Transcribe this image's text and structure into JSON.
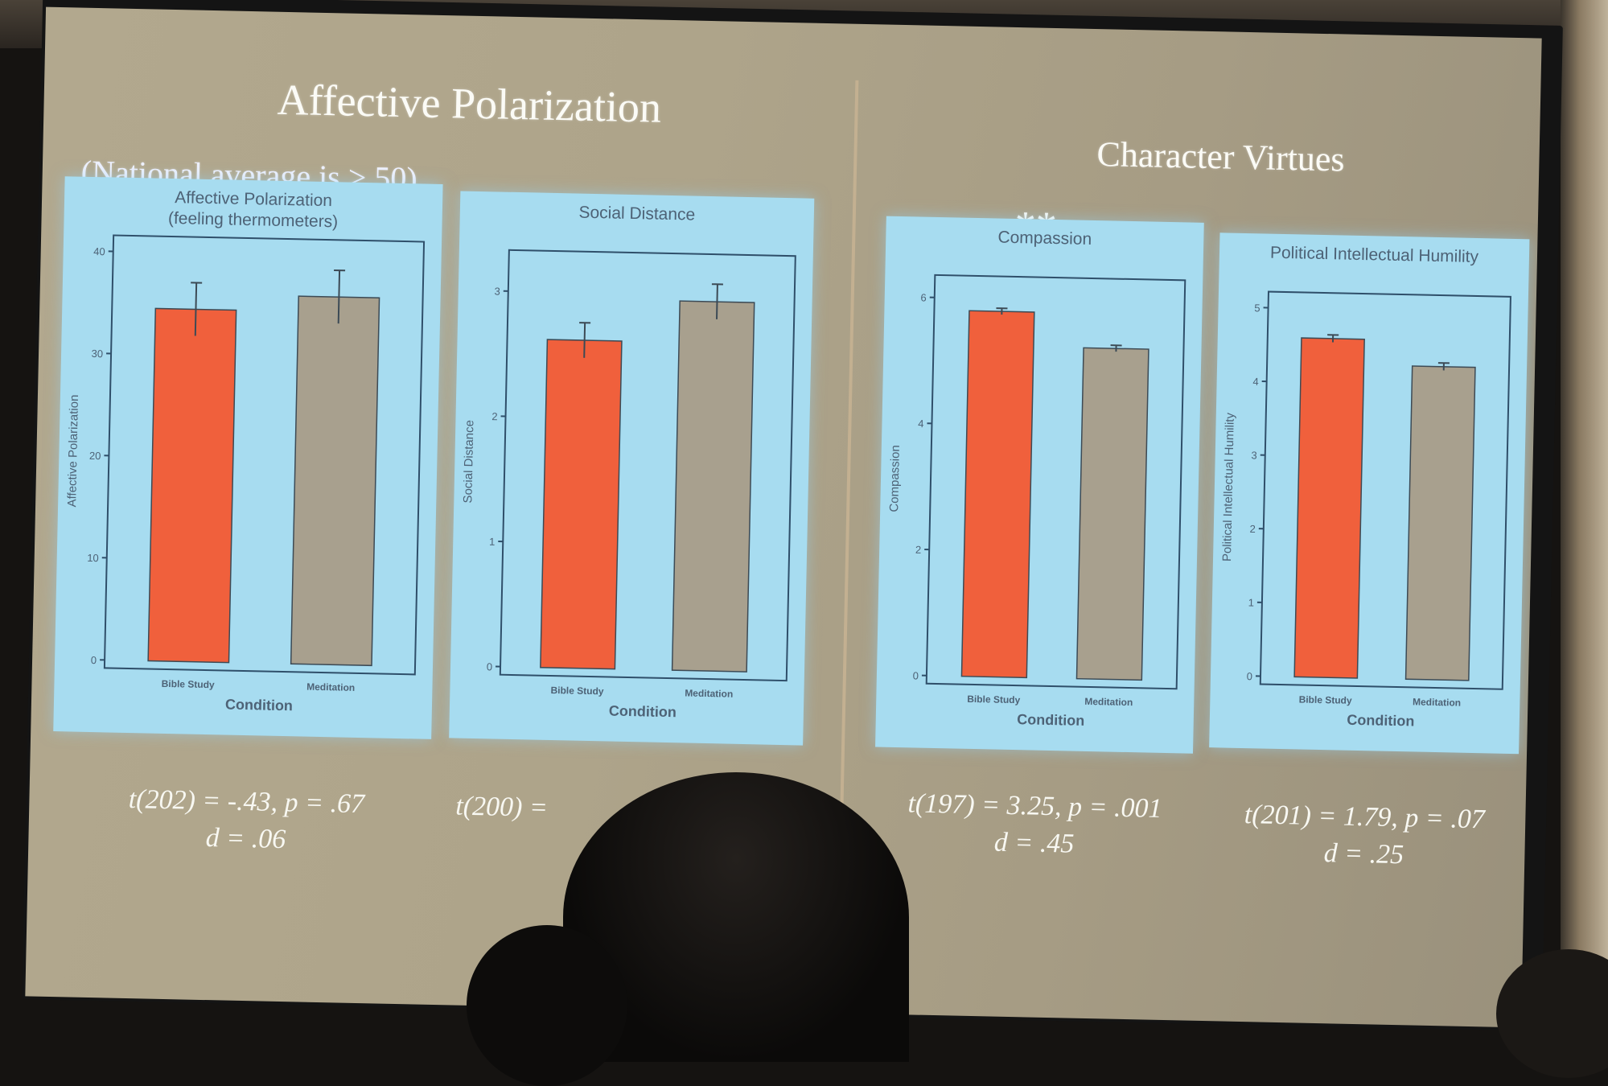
{
  "slide": {
    "left_title": "Affective Polarization",
    "left_subtitle": "(National average is > 50)",
    "right_title": "Character Virtues",
    "significance": "**"
  },
  "colors": {
    "panel_bg": "#a7dcf0",
    "meditation_bar": "#f0603c",
    "control_bar": "#a8a08e",
    "axis": "#2f4f6a"
  },
  "chart_data": [
    {
      "type": "bar",
      "title": "Affective Polarization\n(feeling thermometers)",
      "categories": [
        "Bible Study",
        "Meditation"
      ],
      "values": [
        34.5,
        36.0
      ],
      "errors": [
        2.6,
        2.6
      ],
      "ylabel": "Affective Polarization",
      "xlabel": "Condition",
      "yticks": [
        0,
        10,
        20,
        30,
        40
      ],
      "ylim": [
        0,
        40
      ],
      "stat_line1": "t(202) = -.43, p = .67",
      "stat_line2": "d = .06"
    },
    {
      "type": "bar",
      "title": "Social Distance",
      "categories": [
        "Bible Study",
        "Meditation"
      ],
      "values": [
        2.62,
        2.95
      ],
      "errors": [
        0.14,
        0.14
      ],
      "ylabel": "Social Distance",
      "xlabel": "Condition",
      "yticks": [
        0,
        1,
        2,
        3
      ],
      "ylim": [
        0,
        3.2
      ],
      "stat_line1": "t(200) = ",
      "stat_line2": ""
    },
    {
      "type": "bar",
      "title": "Compassion",
      "categories": [
        "Bible Study",
        "Meditation"
      ],
      "values": [
        5.8,
        5.25
      ],
      "errors": [
        0.05,
        0.05
      ],
      "ylabel": "Compassion",
      "xlabel": "Condition",
      "yticks": [
        0,
        2,
        4,
        6
      ],
      "ylim": [
        0,
        6.1
      ],
      "stat_line1": "t(197) = 3.25, p = .001",
      "stat_line2": "d = .45"
    },
    {
      "type": "bar",
      "title": "Political Intellectual Humility",
      "categories": [
        "Bible Study",
        "Meditation"
      ],
      "values": [
        4.6,
        4.25
      ],
      "errors": [
        0.05,
        0.05
      ],
      "ylabel": "Political Intellectual Humility",
      "xlabel": "Condition",
      "yticks": [
        0,
        1,
        2,
        3,
        4,
        5
      ],
      "ylim": [
        0,
        5
      ],
      "stat_line1": "t(201) = 1.79, p = .07",
      "stat_line2": "d = .25"
    }
  ]
}
